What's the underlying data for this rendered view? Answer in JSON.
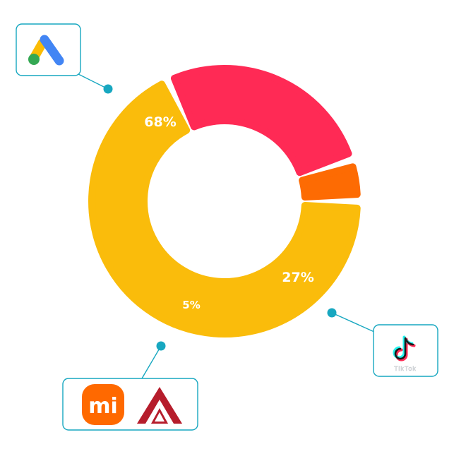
{
  "chart_data": {
    "type": "pie",
    "variant": "donut",
    "slices": [
      {
        "label": "68%",
        "value": 68,
        "color": "#fabc0b",
        "logo": "google-ads-logo"
      },
      {
        "label": "27%",
        "value": 27,
        "color": "#ff2a55",
        "logo": "tiktok-logo"
      },
      {
        "label": "5%",
        "value": 5,
        "color": "#fd6b03",
        "logo": [
          "xiaomi-logo",
          "aaa-red-logo"
        ]
      }
    ],
    "colors": {
      "callout": "#17a7c0",
      "label_text": "#ffffff"
    }
  },
  "logos": {
    "xiaomi_text": "mi",
    "tiktok_word": "TikTok"
  }
}
